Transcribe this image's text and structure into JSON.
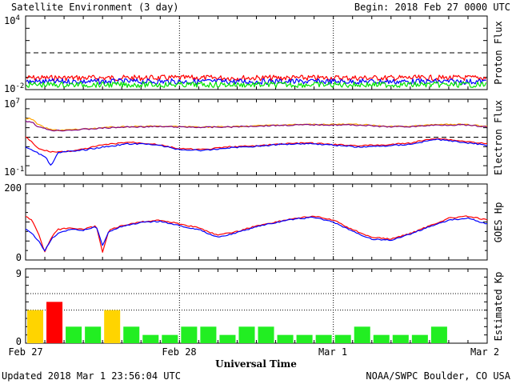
{
  "header": {
    "title": "Satellite Environment (3 day)",
    "begin": "Begin:  2018 Feb 27 0000 UTC"
  },
  "footer": {
    "updated": "Updated 2018 Mar  1 23:56:04 UTC",
    "credit": "NOAA/SWPC Boulder, CO USA"
  },
  "xaxis": {
    "title": "Universal Time",
    "ticks": [
      "Feb 27",
      "Feb 28",
      "Mar 1",
      "Mar 2"
    ]
  },
  "colors": {
    "red": "#ff0000",
    "blue": "#0000ff",
    "green": "#00e600",
    "orange": "#ffa500",
    "purple": "#800080",
    "kp_green": "#22ee22",
    "kp_yellow": "#ffd400",
    "kp_red": "#ff0000"
  },
  "chart_data": [
    {
      "type": "line",
      "panel": "proton",
      "ylabel": "Proton Flux",
      "ytick_labels": [
        {
          "base": "10",
          "exp": "4"
        },
        {
          "base": "10",
          "exp": "-2"
        }
      ],
      "yscale": "log",
      "ylim": [
        0.01,
        10000
      ],
      "threshold": 10,
      "x": [
        0,
        72
      ],
      "series": [
        {
          "color": "red",
          "values": [
            0.09,
            0.09
          ]
        },
        {
          "color": "blue",
          "values": [
            0.045,
            0.045
          ]
        },
        {
          "color": "green",
          "values": [
            0.025,
            0.025
          ]
        }
      ]
    },
    {
      "type": "line",
      "panel": "electron",
      "ylabel": "Electron Flux",
      "ytick_labels": [
        {
          "base": "10",
          "exp": "7"
        },
        {
          "base": "10",
          "exp": "-1"
        }
      ],
      "yscale": "log",
      "ylim": [
        0.1,
        10000000
      ],
      "threshold": 1000,
      "x": [
        0,
        1,
        2,
        3,
        4,
        5,
        8,
        12,
        16,
        20,
        24,
        28,
        32,
        36,
        40,
        44,
        48,
        52,
        56,
        60,
        64,
        68,
        72
      ],
      "series": [
        {
          "color": "orange",
          "values": [
            100000,
            80000,
            20000,
            10000,
            6000,
            5500,
            6500,
            10000,
            13000,
            14000,
            13000,
            12000,
            12500,
            16000,
            20000,
            22000,
            22500,
            22000,
            14000,
            14000,
            21000,
            22000,
            14000
          ]
        },
        {
          "color": "purple",
          "values": [
            50000,
            40000,
            12000,
            8000,
            5500,
            5000,
            6000,
            9000,
            12000,
            13000,
            12000,
            11000,
            12000,
            15000,
            18000,
            20000,
            20000,
            19000,
            12500,
            13000,
            19000,
            20000,
            12000
          ]
        },
        {
          "color": "red",
          "values": [
            1000,
            300,
            60,
            40,
            30,
            28,
            40,
            150,
            300,
            200,
            60,
            50,
            100,
            120,
            200,
            250,
            170,
            130,
            150,
            250,
            800,
            400,
            200
          ]
        },
        {
          "color": "blue",
          "values": [
            100,
            40,
            20,
            10,
            1,
            25,
            35,
            90,
            200,
            180,
            50,
            40,
            80,
            110,
            180,
            220,
            150,
            90,
            120,
            180,
            600,
            300,
            150
          ]
        }
      ]
    },
    {
      "type": "line",
      "panel": "goes_hp",
      "ylabel": "GOES Hp",
      "ytick_labels": [
        "200",
        "0"
      ],
      "ylim": [
        0,
        200
      ],
      "x": [
        0,
        1,
        2,
        3,
        4,
        5,
        7,
        9,
        11,
        12,
        13,
        15,
        18,
        21,
        24,
        27,
        30,
        33,
        36,
        39,
        42,
        45,
        48,
        51,
        54,
        57,
        60,
        63,
        66,
        69,
        72
      ],
      "series": [
        {
          "color": "red",
          "values": [
            115,
            105,
            70,
            20,
            60,
            80,
            85,
            80,
            90,
            20,
            80,
            90,
            100,
            105,
            95,
            85,
            65,
            75,
            90,
            100,
            110,
            115,
            105,
            80,
            60,
            55,
            70,
            90,
            110,
            115,
            105
          ]
        },
        {
          "color": "blue",
          "values": [
            80,
            70,
            50,
            25,
            55,
            70,
            80,
            78,
            88,
            40,
            75,
            88,
            98,
            102,
            90,
            80,
            60,
            72,
            88,
            98,
            108,
            112,
            100,
            75,
            55,
            52,
            68,
            88,
            105,
            110,
            95
          ]
        }
      ]
    },
    {
      "type": "bar",
      "panel": "kp",
      "ylabel": "Estimated Kp",
      "ytick_labels": [
        "9",
        "0"
      ],
      "ylim": [
        0,
        9
      ],
      "values": [
        4,
        5,
        2,
        2,
        4,
        2,
        1,
        1,
        2,
        2,
        1,
        2,
        2,
        1,
        1,
        1,
        1,
        2,
        1,
        1,
        1,
        2,
        0,
        0
      ],
      "colors": [
        "kp_yellow",
        "kp_red",
        "kp_green",
        "kp_green",
        "kp_yellow",
        "kp_green",
        "kp_green",
        "kp_green",
        "kp_green",
        "kp_green",
        "kp_green",
        "kp_green",
        "kp_green",
        "kp_green",
        "kp_green",
        "kp_green",
        "kp_green",
        "kp_green",
        "kp_green",
        "kp_green",
        "kp_green",
        "kp_green",
        "kp_green",
        "kp_green"
      ]
    }
  ]
}
